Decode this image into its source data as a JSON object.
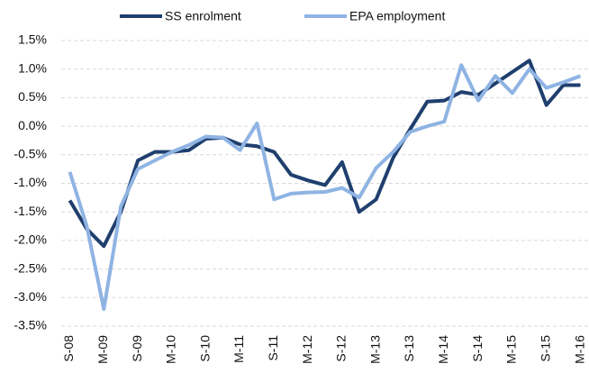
{
  "chart_data": {
    "type": "line",
    "categories": [
      "S-08",
      null,
      "M-09",
      null,
      "S-09",
      null,
      "M-10",
      null,
      "S-10",
      null,
      "M-11",
      null,
      "S-11",
      null,
      "M-12",
      null,
      "S-12",
      null,
      "M-13",
      null,
      "S-13",
      null,
      "M-14",
      null,
      "S-14",
      null,
      "M-15",
      null,
      "S-15",
      null,
      "M-16"
    ],
    "series": [
      {
        "name": "SS enrolment",
        "color": "#1f3f6e",
        "values": [
          -1.3,
          -1.8,
          -2.1,
          -1.5,
          -0.6,
          -0.45,
          -0.45,
          -0.42,
          -0.22,
          -0.2,
          -0.32,
          -0.35,
          -0.45,
          -0.85,
          -0.95,
          -1.03,
          -0.63,
          -1.5,
          -1.28,
          -0.55,
          -0.05,
          0.43,
          0.45,
          0.6,
          0.55,
          0.75,
          0.95,
          1.15,
          0.37,
          0.72,
          0.72
        ]
      },
      {
        "name": "EPA employment",
        "color": "#8fb4e3",
        "values": [
          -0.8,
          -1.75,
          -3.2,
          -1.4,
          -0.75,
          -0.6,
          -0.45,
          -0.33,
          -0.18,
          -0.2,
          -0.42,
          0.05,
          -1.28,
          -1.18,
          -1.16,
          -1.15,
          -1.08,
          -1.25,
          -0.73,
          -0.45,
          -0.1,
          0.0,
          0.08,
          1.07,
          0.45,
          0.88,
          0.58,
          1.0,
          0.67,
          0.77,
          0.88
        ]
      }
    ],
    "ylim": [
      -3.5,
      1.5
    ],
    "yticks": [
      {
        "value": -3.5,
        "label": "-3.5%"
      },
      {
        "value": -3.0,
        "label": "-3.0%"
      },
      {
        "value": -2.5,
        "label": "-2.5%"
      },
      {
        "value": -2.0,
        "label": "-2.0%"
      },
      {
        "value": -1.5,
        "label": "-1.5%"
      },
      {
        "value": -1.0,
        "label": "-1.0%"
      },
      {
        "value": -0.5,
        "label": "-0.5%"
      },
      {
        "value": 0.0,
        "label": "0.0%"
      },
      {
        "value": 0.5,
        "label": "0.5%"
      },
      {
        "value": 1.0,
        "label": "1.0%"
      },
      {
        "value": 1.5,
        "label": "1.5%"
      }
    ],
    "grid": true,
    "legend": "top"
  }
}
